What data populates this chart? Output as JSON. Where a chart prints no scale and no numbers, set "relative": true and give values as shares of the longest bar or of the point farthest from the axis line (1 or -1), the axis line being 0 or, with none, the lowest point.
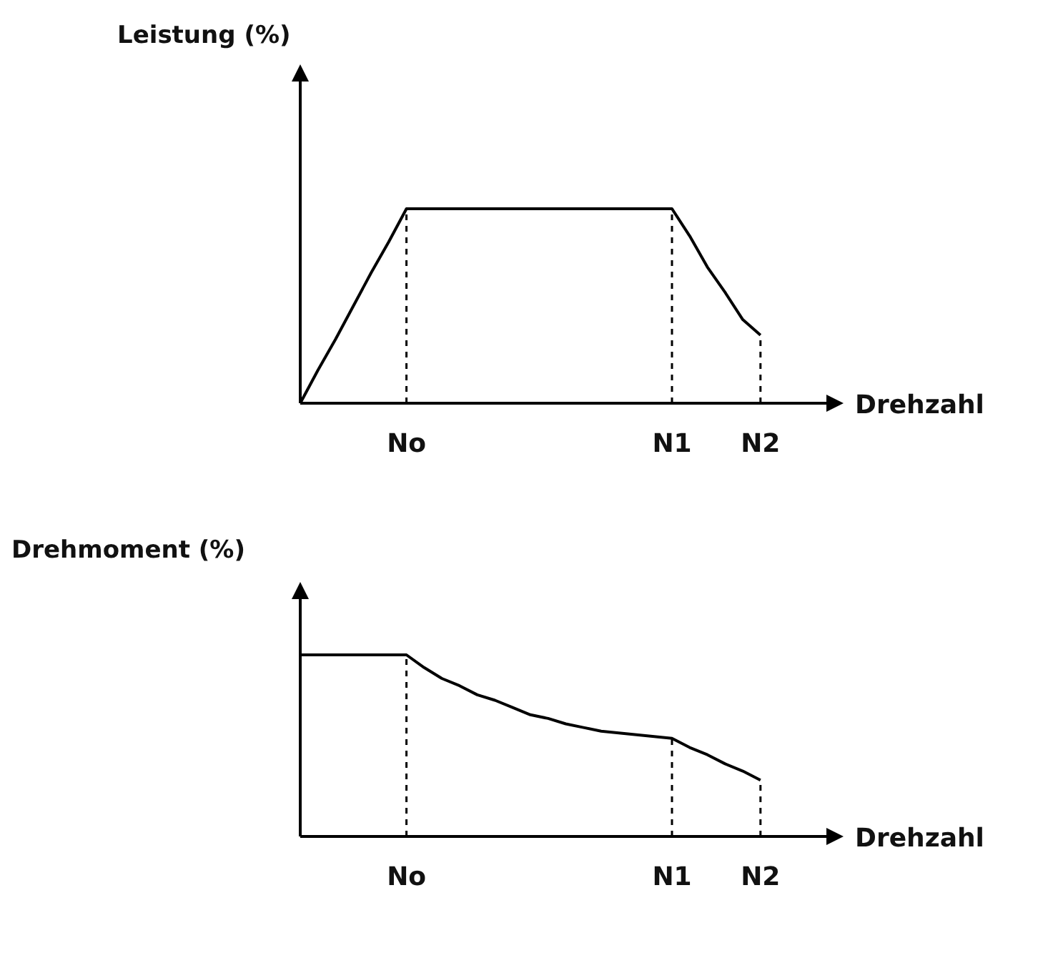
{
  "chart_data": [
    {
      "type": "line",
      "ylabel": "Leistung (%)",
      "xlabel": "Drehzahl",
      "relative": true,
      "categories": [
        null,
        null,
        null,
        null,
        null,
        null,
        "No",
        null,
        null,
        null,
        null,
        null,
        null,
        null,
        null,
        null,
        null,
        null,
        null,
        null,
        null,
        "N1",
        null,
        null,
        null,
        null,
        "N2"
      ],
      "series": [
        {
          "color": "#000000",
          "values": [
            0,
            0.17,
            0.33,
            0.5,
            0.67,
            0.83,
            1,
            1,
            1,
            1,
            1,
            1,
            1,
            1,
            1,
            1,
            1,
            1,
            1,
            1,
            1,
            1,
            0.86,
            0.7,
            0.57,
            0.43,
            0.35
          ]
        }
      ],
      "ref_lines": [
        {
          "axis": "x",
          "value": "No",
          "line_style": "dashed"
        },
        {
          "axis": "x",
          "value": "N1",
          "line_style": "dashed"
        },
        {
          "axis": "x",
          "value": "N2",
          "line_style": "dashed"
        }
      ]
    },
    {
      "type": "line",
      "ylabel": "Drehmoment (%)",
      "xlabel": "Drehzahl",
      "relative": true,
      "categories": [
        null,
        null,
        null,
        null,
        null,
        null,
        "No",
        null,
        null,
        null,
        null,
        null,
        null,
        null,
        null,
        null,
        null,
        null,
        null,
        null,
        null,
        "N1",
        null,
        null,
        null,
        null,
        "N2"
      ],
      "series": [
        {
          "color": "#000000",
          "values": [
            1,
            1,
            1,
            1,
            1,
            1,
            1,
            0.93,
            0.87,
            0.83,
            0.78,
            0.75,
            0.71,
            0.67,
            0.65,
            0.62,
            0.6,
            0.58,
            0.57,
            0.56,
            0.55,
            0.54,
            0.49,
            0.45,
            0.4,
            0.36,
            0.31
          ]
        }
      ],
      "ref_lines": [
        {
          "axis": "x",
          "value": "No",
          "line_style": "dashed"
        },
        {
          "axis": "x",
          "value": "N1",
          "line_style": "dashed"
        },
        {
          "axis": "x",
          "value": "N2",
          "line_style": "dashed"
        }
      ]
    }
  ]
}
